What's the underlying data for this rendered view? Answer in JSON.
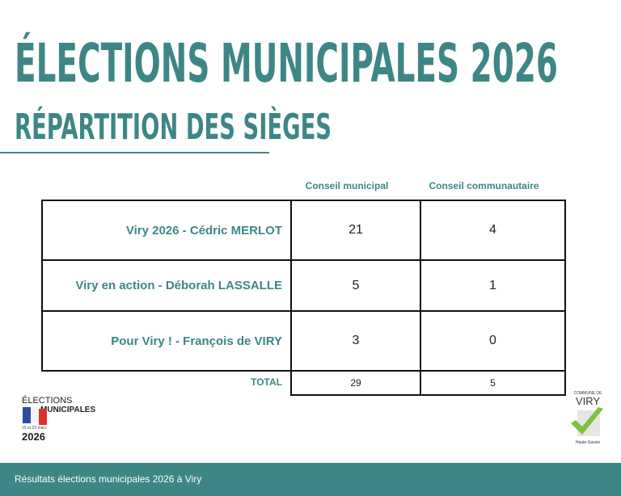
{
  "header": {
    "title": "ÉLECTIONS MUNICIPALES 2026",
    "subtitle": "RÉPARTITION DES SIÈGES"
  },
  "table": {
    "columns": [
      "Conseil municipal",
      "Conseil communautaire"
    ],
    "rows": [
      [
        "Viry 2026 - Cédric MERLOT",
        21,
        4
      ],
      [
        "Viry en action - Déborah LASSALLE",
        5,
        1
      ],
      [
        "Pour Viry ! - François de VIRY",
        3,
        0
      ]
    ],
    "total": [
      "TOTAL",
      29,
      5
    ]
  },
  "logo_left": {
    "line1": "ÉLECTIONS",
    "line2": "MUNICIPALES",
    "dates": "15 et 22 mars",
    "year": "2026"
  },
  "logo_right": {
    "top": "COMMUNE DE",
    "name": "VIRY",
    "bottom": "Haute-Savoie"
  },
  "footer": {
    "text": "Résultats élections municipales 2026 à Viry"
  }
}
